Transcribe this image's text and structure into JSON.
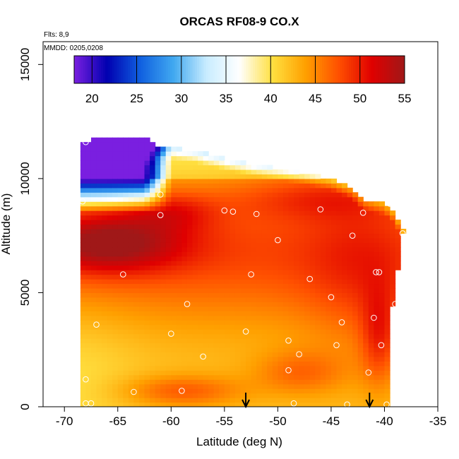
{
  "chart_data": {
    "type": "heatmap",
    "title": "ORCAS RF08-9 CO.X",
    "annotations": [
      "Flts: 8,9",
      "MMDD: 0205,0208"
    ],
    "xlabel": "Latitude (deg N)",
    "ylabel": "Altitude (m)",
    "xlim": [
      -72,
      -35
    ],
    "ylim": [
      0,
      16000
    ],
    "x_ticks": [
      -70,
      -65,
      -60,
      -55,
      -50,
      -45,
      -40,
      -35
    ],
    "y_ticks": [
      0,
      5000,
      10000,
      15000
    ],
    "grid": false,
    "legend": "colorbar at top inside plot",
    "colorbar": {
      "range": [
        18,
        55
      ],
      "ticks": [
        20,
        25,
        30,
        35,
        40,
        45,
        50,
        55
      ],
      "colors": [
        "#7a1fe0",
        "#0000b0",
        "#1060e0",
        "#40a8f0",
        "#c8ecff",
        "#ffffff",
        "#ffe040",
        "#ffa000",
        "#ff5000",
        "#e00000",
        "#a01818"
      ]
    },
    "fields": {
      "upper_boundary": [
        [
          -68.3,
          11600
        ],
        [
          -67,
          11800
        ],
        [
          -63,
          11800
        ],
        [
          -62,
          11700
        ],
        [
          -61.5,
          11450
        ],
        [
          -58,
          11250
        ],
        [
          -55,
          10900
        ],
        [
          -52,
          10600
        ],
        [
          -48,
          10300
        ],
        [
          -45,
          10000
        ],
        [
          -43,
          9600
        ],
        [
          -42,
          9100
        ],
        [
          -40,
          8900
        ],
        [
          -39,
          8500
        ],
        [
          -38.2,
          7700
        ]
      ],
      "low_co_region": "upper left, lat -69 to -60, altitude 8500-11800 m, values 19-35",
      "high_co_layer": "lat -70 to -60, altitude 6000-8200 m, values 50-55",
      "mid_troposphere": "values 46-50 across lat -70 to -38, altitude 4000-8500 m",
      "lower_troposphere": "values 40-45, lowest near lat -71 surface"
    },
    "sample_points": [
      [
        -68,
        11600
      ],
      [
        -68.3,
        9000
      ],
      [
        -61,
        9300
      ],
      [
        -61,
        8400
      ],
      [
        -55,
        8600
      ],
      [
        -54.2,
        8550
      ],
      [
        -52,
        8450
      ],
      [
        -46,
        8650
      ],
      [
        -42,
        8500
      ],
      [
        -39.5,
        8900
      ],
      [
        -38.3,
        7600
      ],
      [
        -50,
        7300
      ],
      [
        -43,
        7500
      ],
      [
        -69.5,
        7000
      ],
      [
        -64.5,
        5800
      ],
      [
        -52.5,
        5800
      ],
      [
        -47,
        5600
      ],
      [
        -40.8,
        5900
      ],
      [
        -40.5,
        5900
      ],
      [
        -45,
        4800
      ],
      [
        -39,
        4500
      ],
      [
        -58.5,
        4500
      ],
      [
        -70.5,
        4000
      ],
      [
        -67,
        3600
      ],
      [
        -53,
        3300
      ],
      [
        -60,
        3200
      ],
      [
        -44,
        3700
      ],
      [
        -41,
        3900
      ],
      [
        -49,
        2900
      ],
      [
        -40.3,
        2700
      ],
      [
        -44.5,
        2700
      ],
      [
        -48,
        2300
      ],
      [
        -57,
        2200
      ],
      [
        -70.2,
        2000
      ],
      [
        -71.2,
        1600
      ],
      [
        -70.5,
        1400
      ],
      [
        -69,
        1400
      ],
      [
        -68,
        1200
      ],
      [
        -71.5,
        1200
      ],
      [
        -59,
        700
      ],
      [
        -63.5,
        650
      ],
      [
        -70.5,
        300
      ],
      [
        -69.5,
        200
      ],
      [
        -68,
        150
      ],
      [
        -67.5,
        150
      ],
      [
        -48.5,
        150
      ],
      [
        -43.5,
        100
      ],
      [
        -49,
        1600
      ],
      [
        -41.5,
        1500
      ],
      [
        -39.8,
        100
      ]
    ],
    "markers": [
      {
        "type": "arrow",
        "lat": -53.0
      },
      {
        "type": "arrow",
        "lat": -41.4
      }
    ]
  }
}
